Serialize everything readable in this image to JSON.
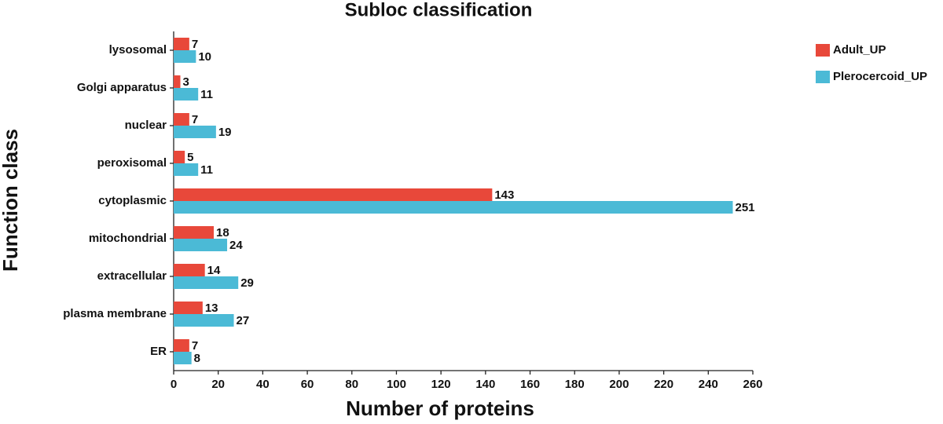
{
  "chart_data": {
    "type": "bar",
    "orientation": "horizontal",
    "title": "Subloc classification",
    "x_label": "Number of proteins",
    "y_label": "Function class",
    "categories": [
      "lysosomal",
      "Golgi apparatus",
      "nuclear",
      "peroxisomal",
      "cytoplasmic",
      "mitochondrial",
      "extracellular",
      "plasma membrane",
      "ER"
    ],
    "series": [
      {
        "name": "Adult_UP",
        "color": "#e8483a",
        "values": [
          7,
          3,
          7,
          5,
          143,
          18,
          14,
          13,
          7
        ]
      },
      {
        "name": "Plerocercoid_UP",
        "color": "#4bbad6",
        "values": [
          10,
          11,
          19,
          11,
          251,
          24,
          29,
          27,
          8
        ]
      }
    ],
    "xlim": [
      0,
      260
    ],
    "xticks": [
      0,
      20,
      40,
      60,
      80,
      100,
      120,
      140,
      160,
      180,
      200,
      220,
      240,
      260
    ],
    "legend": "right",
    "grid": false
  }
}
